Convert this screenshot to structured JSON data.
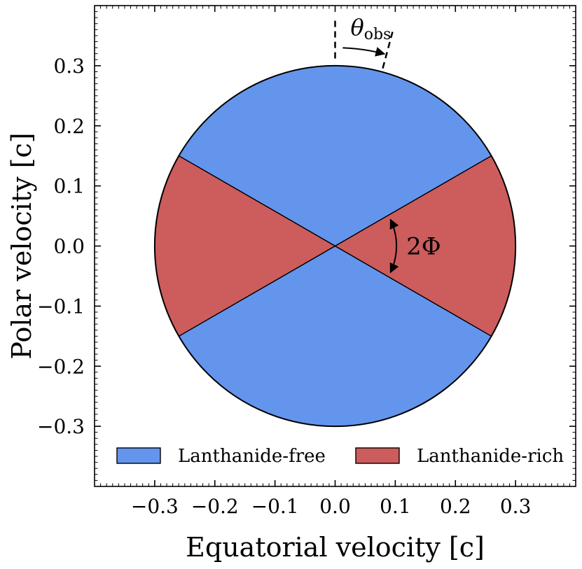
{
  "chart_data": {
    "type": "pie",
    "xlabel": "Equatorial velocity [c]",
    "ylabel": "Polar velocity [c]",
    "xlim": [
      -0.4,
      0.4
    ],
    "ylim": [
      -0.4,
      0.4
    ],
    "xticks": [
      -0.3,
      -0.2,
      -0.1,
      0.0,
      0.1,
      0.2,
      0.3
    ],
    "yticks": [
      -0.3,
      -0.2,
      -0.1,
      0.0,
      0.1,
      0.2,
      0.3
    ],
    "xtick_labels": [
      "−0.3",
      "−0.2",
      "−0.1",
      "0.0",
      "0.1",
      "0.2",
      "0.3"
    ],
    "ytick_labels": [
      "−0.3",
      "−0.2",
      "−0.1",
      "0.0",
      "0.1",
      "0.2",
      "0.3"
    ],
    "grid": false,
    "circle": {
      "center": [
        0.0,
        0.0
      ],
      "radius": 0.3
    },
    "half_opening_angle_deg": 30,
    "series": [
      {
        "name": "Lanthanide-free",
        "color": "#6495ED",
        "sectors_deg": [
          [
            30,
            150
          ],
          [
            210,
            330
          ]
        ]
      },
      {
        "name": "Lanthanide-rich",
        "color": "#CD5C5C",
        "sectors_deg": [
          [
            -30,
            30
          ],
          [
            150,
            210
          ]
        ]
      }
    ],
    "legend": {
      "placement": "bottom",
      "columns": 2
    },
    "annotations": {
      "viewing_angle": {
        "symbol": "θ",
        "subscript": "obs",
        "line_angles_from_pole_deg": [
          0,
          15
        ]
      },
      "opening_angle": {
        "text": "2Φ"
      }
    }
  }
}
